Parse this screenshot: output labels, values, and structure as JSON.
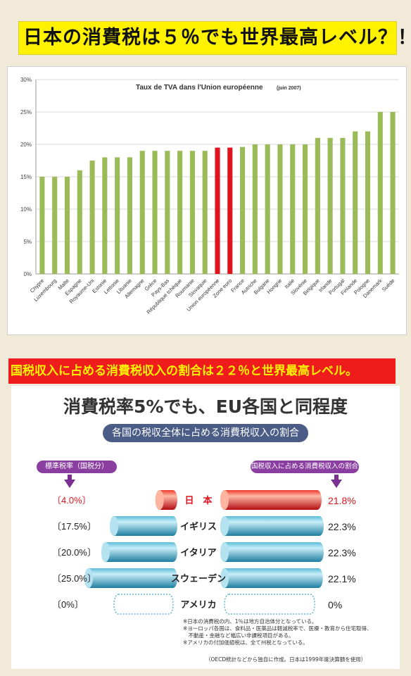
{
  "banner1": {
    "text": "日本の消費税は５％でも世界最高レベル？！"
  },
  "banner2": {
    "text": "国税収入に占める消費税収入の割合は２２％と世界最高レベル。"
  },
  "chart_data": [
    {
      "type": "bar",
      "title": "Taux de TVA dans l'Union européenne",
      "title_note": "(juin 2007)",
      "categories": [
        "Chypre",
        "Luxembourg",
        "Malte",
        "Espagne",
        "Royaume-Uni",
        "Estonie",
        "Lettonie",
        "Lituanie",
        "Allemagne",
        "Grèce",
        "Pays-Bas",
        "République tchèque",
        "Roumanie",
        "Slovaquie",
        "Union européenne",
        "Zone euro",
        "France",
        "Autriche",
        "Bulgarie",
        "Hongrie",
        "Italie",
        "Slovénie",
        "Belgique",
        "Irlande",
        "Portugal",
        "Finlande",
        "Pologne",
        "Danemark",
        "Suède"
      ],
      "values": [
        15,
        15,
        15,
        16,
        17.5,
        18,
        18,
        18,
        19,
        19,
        19,
        19,
        19,
        19,
        19.5,
        19.5,
        19.6,
        20,
        20,
        20,
        20,
        20,
        21,
        21,
        21,
        22,
        22,
        25,
        25
      ],
      "highlight": [
        "Union européenne",
        "Zone euro"
      ],
      "colors": {
        "bar": "#9bbb59",
        "highlight": "#e0141e"
      },
      "yticks": [
        "0%",
        "5%",
        "10%",
        "15%",
        "20%",
        "25%",
        "30%"
      ],
      "ylim": [
        0,
        30
      ],
      "grid": true
    },
    {
      "type": "bar",
      "title": "消費税率5%でも、EU各国と同程度",
      "subtitle": "各国の税収全体に占める消費税収入の割合",
      "left_label": "標準税率（国税分）",
      "right_label": "国税収入に占める消費税収入の割合",
      "rows": [
        {
          "country": "日　本",
          "rate": 4.0,
          "rate_label": "〔4.0%〕",
          "share": 21.8,
          "share_label": "21.8%",
          "highlight": true
        },
        {
          "country": "イギリス",
          "rate": 17.5,
          "rate_label": "〔17.5%〕",
          "share": 22.3,
          "share_label": "22.3%",
          "highlight": false
        },
        {
          "country": "イタリア",
          "rate": 20.0,
          "rate_label": "〔20.0%〕",
          "share": 22.3,
          "share_label": "22.3%",
          "highlight": false
        },
        {
          "country": "スウェーデン",
          "rate": 25.0,
          "rate_label": "〔25.0%〕",
          "share": 22.1,
          "share_label": "22.1%",
          "highlight": false
        },
        {
          "country": "アメリカ",
          "rate": 0,
          "rate_label": "〔0%〕",
          "share": 0,
          "share_label": "0%",
          "highlight": false
        }
      ],
      "colors": {
        "cyl": "#3fa7c6",
        "highlight": "#e0141e"
      },
      "notes": [
        "※日本の消費税の内、1％は地方自治体分となっている。",
        "※ヨーロッパ各国は、食料品・医薬品は軽減税率で、医療・教育から住宅取得、",
        "　不動産・金融など幅広い非課税項目がある。",
        "※アメリカの付加価値税は、全て州税となっている。"
      ],
      "source": "（OECD統計などから独自に作成。日本は1999年度決算額を使用）"
    }
  ]
}
